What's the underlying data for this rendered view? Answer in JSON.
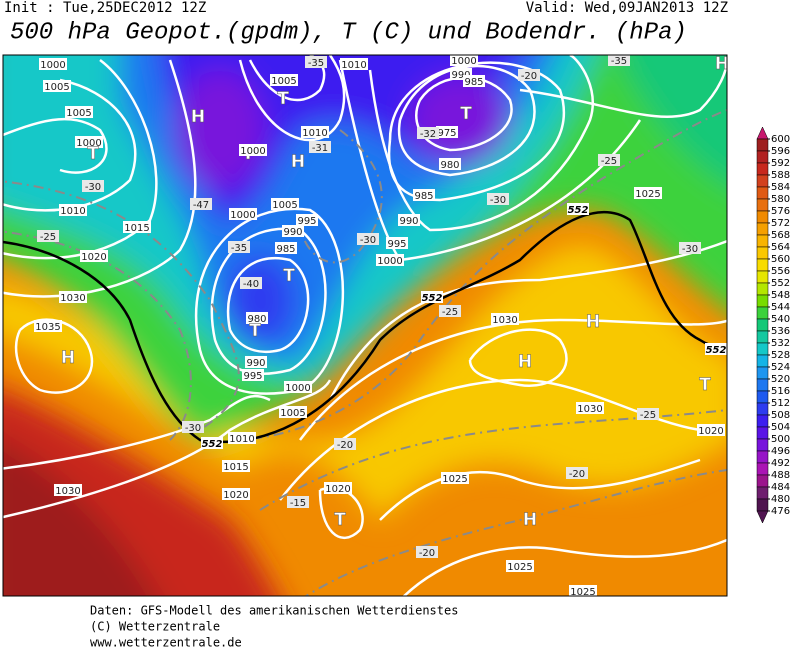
{
  "header": {
    "init": "Init : Tue,25DEC2012 12Z",
    "valid": "Valid: Wed,09JAN2013 12Z",
    "title": "500 hPa Geopot.(gpdm), T (C) und Bodendr. (hPa)"
  },
  "map_labels": [
    "1000",
    "1005",
    "1005",
    "1000",
    "T",
    "-30",
    "1010",
    "1015",
    "-25",
    "1020",
    "1030",
    "1035",
    "H",
    "H",
    "T",
    "1000",
    "-47",
    "1005",
    "T",
    "-35",
    "1010",
    "1010",
    "-31",
    "H",
    "1005",
    "1000",
    "995",
    "990",
    "-35",
    "985",
    "T",
    "-40",
    "980",
    "T",
    "990",
    "995",
    "1000",
    "1005",
    "1010",
    "-30",
    "552",
    "1015",
    "1020",
    "-15",
    "1020",
    "T",
    "-20",
    "1030",
    "1000",
    "990",
    "985",
    "T",
    "975",
    "-32",
    "980",
    "985",
    "990",
    "-30",
    "-30",
    "995",
    "1000",
    "-20",
    "-35",
    "H",
    "-25",
    "1025",
    "552",
    "-30",
    "552",
    "-25",
    "1030",
    "H",
    "H",
    "1030",
    "-25",
    "T",
    "1020",
    "552",
    "-20",
    "1025",
    "H",
    "-20",
    "1025",
    "1025"
  ],
  "colorbar": {
    "levels": [
      600,
      596,
      592,
      588,
      584,
      580,
      576,
      572,
      568,
      564,
      560,
      556,
      552,
      548,
      544,
      540,
      536,
      532,
      528,
      524,
      520,
      516,
      512,
      508,
      504,
      500,
      496,
      492,
      488,
      484,
      480,
      476
    ],
    "colors": [
      "#c8186e",
      "#9e1f1f",
      "#b22222",
      "#c8281e",
      "#d2411e",
      "#e05a14",
      "#e87010",
      "#f08a00",
      "#f5a000",
      "#f8b400",
      "#fac800",
      "#f8dc00",
      "#e6e600",
      "#b4e600",
      "#78dc00",
      "#3cd23c",
      "#14c878",
      "#14c8a0",
      "#14c8c8",
      "#14b4e6",
      "#1e96f0",
      "#1e78f0",
      "#1e5af0",
      "#2d3cf0",
      "#3c1ef0",
      "#5a14e6",
      "#7814dc",
      "#9614c8",
      "#aa14b4",
      "#9b148c",
      "#6e1e6e",
      "#501450"
    ]
  },
  "footer": {
    "lines": [
      "Daten: GFS-Modell des amerikanischen Wetterdienstes",
      "(C) Wetterzentrale",
      "www.wetterzentrale.de"
    ]
  }
}
